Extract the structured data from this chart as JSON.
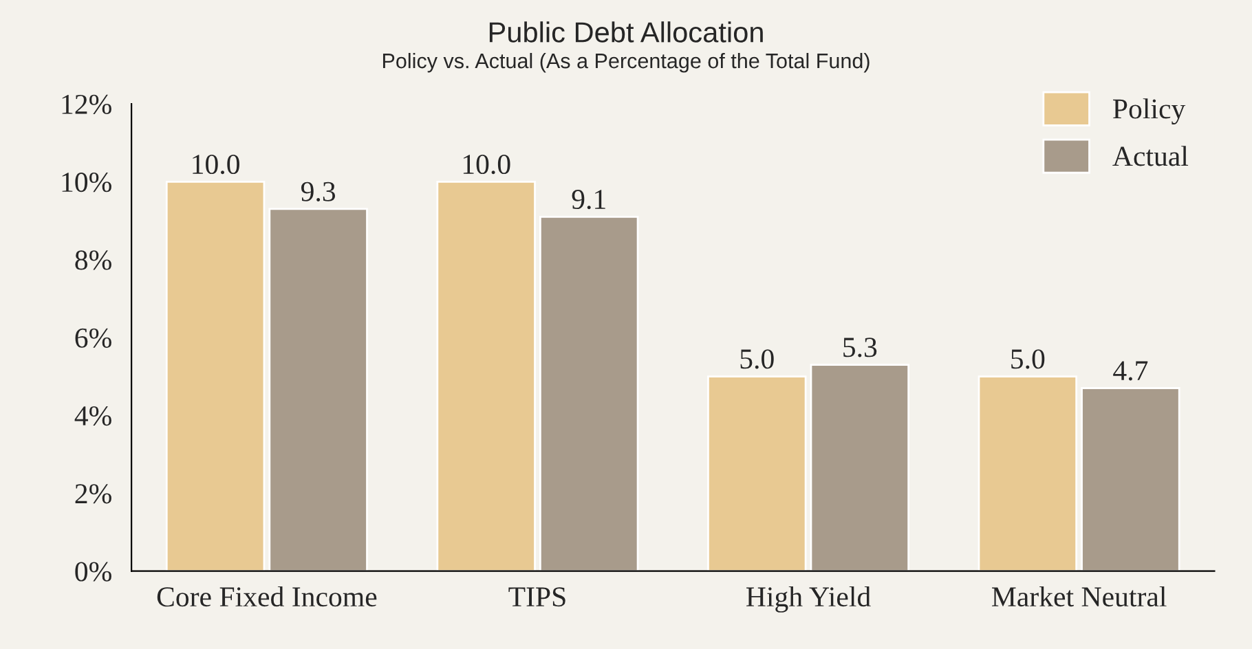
{
  "chart_data": {
    "type": "bar",
    "title": "Public Debt Allocation",
    "subtitle": "Policy vs. Actual (As a Percentage of the Total Fund)",
    "categories": [
      "Core Fixed Income",
      "TIPS",
      "High Yield",
      "Market Neutral"
    ],
    "series": [
      {
        "name": "Policy",
        "color": "#e8c992",
        "values": [
          10.0,
          10.0,
          5.0,
          5.0
        ],
        "value_labels": [
          "10.0",
          "10.0",
          "5.0",
          "5.0"
        ]
      },
      {
        "name": "Actual",
        "color": "#a89b8b",
        "values": [
          9.3,
          9.1,
          5.3,
          4.7
        ],
        "value_labels": [
          "9.3",
          "9.1",
          "5.3",
          "4.7"
        ]
      }
    ],
    "ylim": [
      0,
      12
    ],
    "yticks": [
      {
        "value": 0,
        "label": "0%"
      },
      {
        "value": 2,
        "label": "2%"
      },
      {
        "value": 4,
        "label": "4%"
      },
      {
        "value": 6,
        "label": "6%"
      },
      {
        "value": 8,
        "label": "8%"
      },
      {
        "value": 10,
        "label": "10%"
      },
      {
        "value": 12,
        "label": "12%"
      }
    ],
    "legend": "top right",
    "grid": false
  }
}
